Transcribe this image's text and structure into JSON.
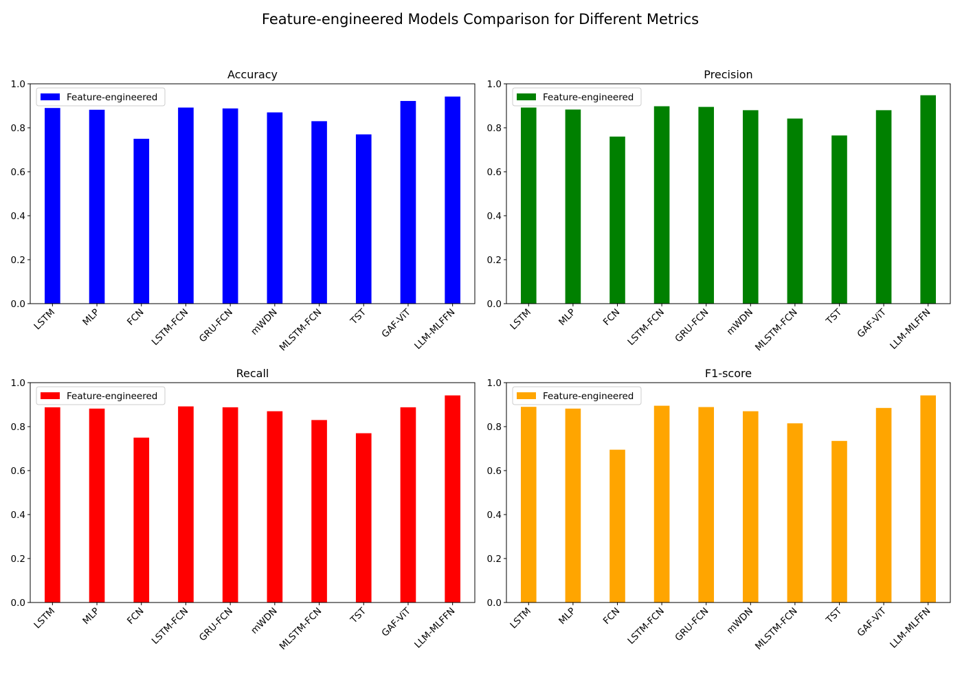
{
  "figure": {
    "title": "Feature-engineered Models Comparison for Different Metrics"
  },
  "chart_data": [
    {
      "type": "bar",
      "title": "Accuracy",
      "xlabel": "",
      "ylabel": "",
      "categories": [
        "LSTM",
        "MLP",
        "FCN",
        "LSTM-FCN",
        "GRU-FCN",
        "mWDN",
        "MLSTM-FCN",
        "TST",
        "GAF-ViT",
        "LLM-MLFFN"
      ],
      "series": [
        {
          "name": "Feature-engineered",
          "color": "#0000ff",
          "values": [
            0.89,
            0.882,
            0.75,
            0.892,
            0.888,
            0.87,
            0.83,
            0.77,
            0.922,
            0.942
          ]
        }
      ],
      "ylim": [
        0,
        1.0
      ],
      "yticks": [
        "0.0",
        "0.2",
        "0.4",
        "0.6",
        "0.8",
        "1.0"
      ],
      "grid": false,
      "legend": "upper-left"
    },
    {
      "type": "bar",
      "title": "Precision",
      "xlabel": "",
      "ylabel": "",
      "categories": [
        "LSTM",
        "MLP",
        "FCN",
        "LSTM-FCN",
        "GRU-FCN",
        "mWDN",
        "MLSTM-FCN",
        "TST",
        "GAF-ViT",
        "LLM-MLFFN"
      ],
      "series": [
        {
          "name": "Feature-engineered",
          "color": "#008000",
          "values": [
            0.892,
            0.883,
            0.76,
            0.898,
            0.895,
            0.88,
            0.842,
            0.765,
            0.88,
            0.948
          ]
        }
      ],
      "ylim": [
        0,
        1.0
      ],
      "yticks": [
        "0.0",
        "0.2",
        "0.4",
        "0.6",
        "0.8",
        "1.0"
      ],
      "grid": false,
      "legend": "upper-left"
    },
    {
      "type": "bar",
      "title": "Recall",
      "xlabel": "",
      "ylabel": "",
      "categories": [
        "LSTM",
        "MLP",
        "FCN",
        "LSTM-FCN",
        "GRU-FCN",
        "mWDN",
        "MLSTM-FCN",
        "TST",
        "GAF-ViT",
        "LLM-MLFFN"
      ],
      "series": [
        {
          "name": "Feature-engineered",
          "color": "#ff0000",
          "values": [
            0.888,
            0.882,
            0.75,
            0.892,
            0.888,
            0.87,
            0.83,
            0.77,
            0.888,
            0.942
          ]
        }
      ],
      "ylim": [
        0,
        1.0
      ],
      "yticks": [
        "0.0",
        "0.2",
        "0.4",
        "0.6",
        "0.8",
        "1.0"
      ],
      "grid": false,
      "legend": "upper-left"
    },
    {
      "type": "bar",
      "title": "F1-score",
      "xlabel": "",
      "ylabel": "",
      "categories": [
        "LSTM",
        "MLP",
        "FCN",
        "LSTM-FCN",
        "GRU-FCN",
        "mWDN",
        "MLSTM-FCN",
        "TST",
        "GAF-ViT",
        "LLM-MLFFN"
      ],
      "series": [
        {
          "name": "Feature-engineered",
          "color": "#ffa500",
          "values": [
            0.89,
            0.882,
            0.695,
            0.895,
            0.889,
            0.87,
            0.815,
            0.735,
            0.885,
            0.942
          ]
        }
      ],
      "ylim": [
        0,
        1.0
      ],
      "yticks": [
        "0.0",
        "0.2",
        "0.4",
        "0.6",
        "0.8",
        "1.0"
      ],
      "grid": false,
      "legend": "upper-left"
    }
  ]
}
